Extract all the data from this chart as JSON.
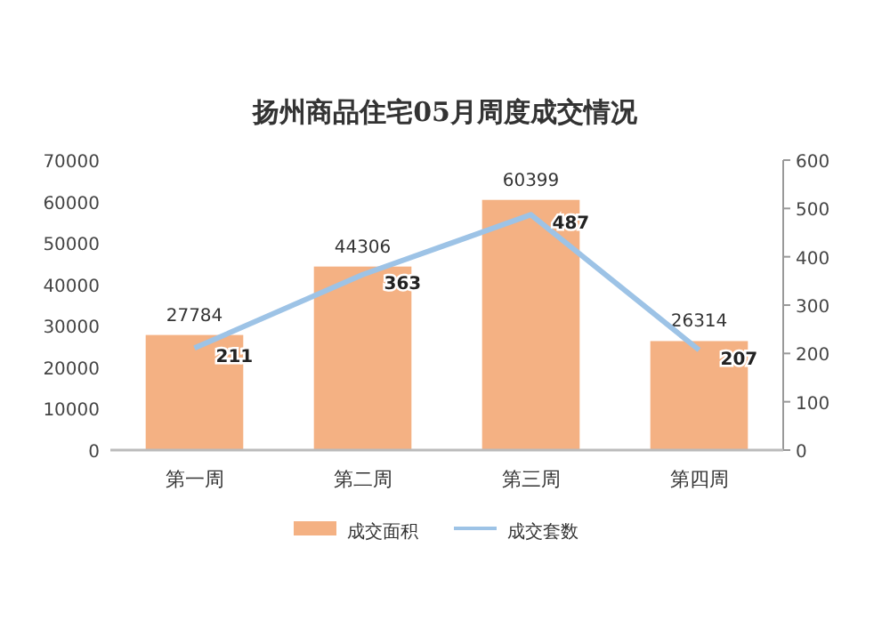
{
  "chart_data": {
    "type": "bar",
    "title": "扬州商品住宅05月周度成交情况",
    "categories": [
      "第一周",
      "第二周",
      "第三周",
      "第四周"
    ],
    "series": [
      {
        "name": "成交面积",
        "color": "#f4b183",
        "values": [
          27784,
          44306,
          60399,
          26314
        ]
      },
      {
        "name": "成交套数",
        "type": "line",
        "axis": "y2",
        "color": "#9dc3e6",
        "values": [
          211,
          363,
          487,
          207
        ]
      }
    ],
    "ylim": [
      0,
      70000
    ],
    "yticks": [
      0,
      10000,
      20000,
      30000,
      40000,
      50000,
      60000,
      70000
    ],
    "y2lim": [
      0,
      600
    ],
    "y2ticks": [
      0,
      100,
      200,
      300,
      400,
      500,
      600
    ],
    "data_labels": true,
    "legend": "bottom",
    "grid": false,
    "marker": "none"
  }
}
